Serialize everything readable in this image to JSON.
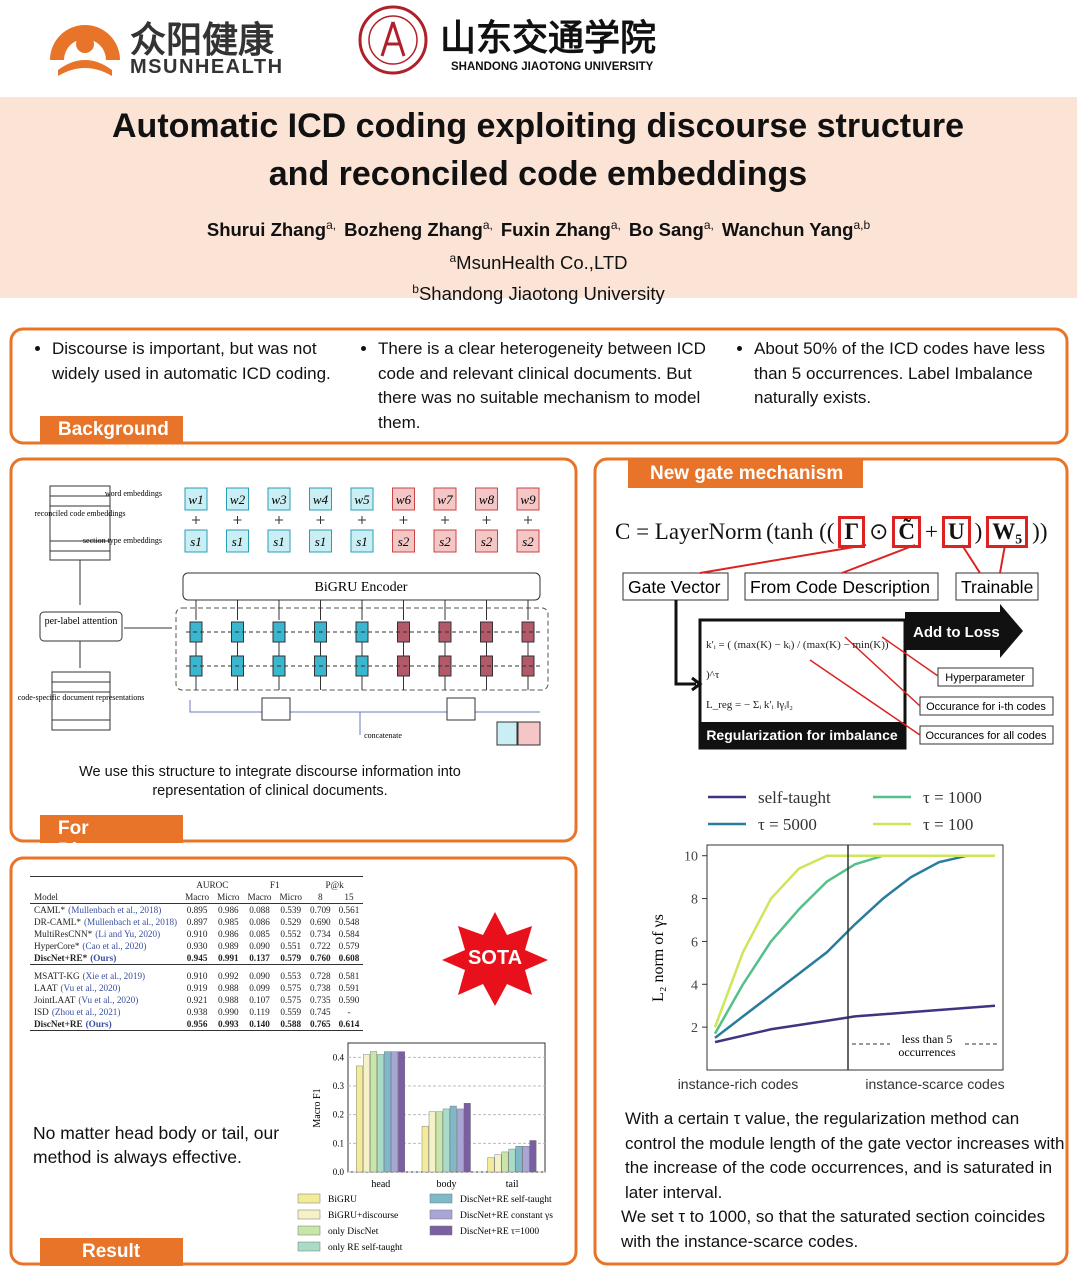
{
  "header": {
    "logo1_cn": "众阳健康",
    "logo1_en": "MSUNHEALTH",
    "logo2_cn": "山东交通学院",
    "logo2_en": "SHANDONG JIAOTONG UNIVERSITY",
    "title": [
      "Automatic ICD coding exploiting discourse structure",
      "and reconciled code embeddings"
    ],
    "authors": [
      {
        "name": "Shurui Zhang",
        "sup": "a,"
      },
      {
        "name": "Bozheng Zhang",
        "sup": "a,"
      },
      {
        "name": "Fuxin Zhang",
        "sup": "a,"
      },
      {
        "name": "Bo Sang",
        "sup": "a,"
      },
      {
        "name": "Wanchun Yang",
        "sup": "a,b"
      }
    ],
    "affiliations": [
      {
        "sup": "a",
        "text": "MsunHealth Co.,LTD"
      },
      {
        "sup": "b",
        "text": "Shandong Jiaotong University"
      }
    ]
  },
  "background": {
    "label": "Background",
    "bullets": [
      "Discourse is important, but was not widely used in automatic ICD coding.",
      "There is a clear heterogeneity between ICD code and relevant clinical documents. But there was no suitable mechanism to model them.",
      "About 50% of the ICD codes have less than 5 occurrences. Label Imbalance naturally exists."
    ]
  },
  "discourse": {
    "label": "For Discourse",
    "caption": "We use this structure to integrate discourse information into representation of clinical documents.",
    "figure": {
      "word_label": "word embeddings",
      "section_label": "section type embeddings",
      "encoder": "BiGRU Encoder",
      "reconciled": "reconciled code embeddings",
      "attention": "per-label attention",
      "doc_repr": "code-specific document representations",
      "concatenate": "concatenate",
      "words": [
        "w1",
        "w2",
        "w3",
        "w4",
        "w5",
        "w6",
        "w7",
        "w8",
        "w9"
      ],
      "sections": [
        "s1",
        "s1",
        "s1",
        "s1",
        "s1",
        "s2",
        "s2",
        "s2",
        "s2"
      ]
    }
  },
  "gate": {
    "label": "New gate mechanism",
    "formula": [
      {
        "text": "C = LayerNorm",
        "boxed": false
      },
      {
        "text": "(tanh ((",
        "boxed": false
      },
      {
        "text": "Γ",
        "boxed": true
      },
      {
        "text": "⊙",
        "boxed": false
      },
      {
        "text": "C̃",
        "boxed": true
      },
      {
        "text": "+",
        "boxed": false
      },
      {
        "text": "U",
        "boxed": true
      },
      {
        "text": ")",
        "boxed": false
      },
      {
        "text": "W₅",
        "boxed": true
      },
      {
        "text": "))",
        "boxed": false
      }
    ],
    "boxes": [
      "Gate Vector",
      "From Code Description",
      "Trainable"
    ],
    "reg_formula": [
      "k′ᵢ = ( (max(K) − kᵢ) / (max(K) − min(K)) )^τ",
      "L_reg = − Σᵢ k′ᵢ ‖γᵢ‖₂"
    ],
    "add_to_loss": "Add to Loss",
    "reg_label": "Regularization for imbalance",
    "notes": [
      "Hyperparameter",
      "Occurance for i-th codes",
      "Occurances for all codes"
    ],
    "description": [
      "With a certain τ value, the regularization method can control the module length of the gate vector increases with the increase of the code occurrences, and is saturated in later interval.",
      "We set τ to 1000, so that the saturated section coincides with the instance-scarce codes."
    ]
  },
  "result": {
    "label": "Result",
    "badge": "SOTA",
    "text": "No matter head body or tail, our method is always effective.",
    "table": {
      "group_headers": [
        "AUROC",
        "F1",
        "P@k"
      ],
      "columns": [
        "Model",
        "Macro",
        "Micro",
        "Macro",
        "Micro",
        "8",
        "15"
      ],
      "rows": [
        [
          "CAML*",
          "(Mullenbach et al., 2018)",
          "0.895",
          "0.986",
          "0.088",
          "0.539",
          "0.709",
          "0.561"
        ],
        [
          "DR-CAML*",
          "(Mullenbach et al., 2018)",
          "0.897",
          "0.985",
          "0.086",
          "0.529",
          "0.690",
          "0.548"
        ],
        [
          "MultiResCNN*",
          "(Li and Yu, 2020)",
          "0.910",
          "0.986",
          "0.085",
          "0.552",
          "0.734",
          "0.584"
        ],
        [
          "HyperCore*",
          "(Cao et al., 2020)",
          "0.930",
          "0.989",
          "0.090",
          "0.551",
          "0.722",
          "0.579"
        ],
        [
          "DiscNet+RE*",
          "(Ours)",
          "0.945",
          "0.991",
          "0.137",
          "0.579",
          "0.760",
          "0.608"
        ],
        [
          "MSATT-KG",
          "(Xie et al., 2019)",
          "0.910",
          "0.992",
          "0.090",
          "0.553",
          "0.728",
          "0.581"
        ],
        [
          "LAAT",
          "(Vu et al., 2020)",
          "0.919",
          "0.988",
          "0.099",
          "0.575",
          "0.738",
          "0.591"
        ],
        [
          "JointLAAT",
          "(Vu et al., 2020)",
          "0.921",
          "0.988",
          "0.107",
          "0.575",
          "0.735",
          "0.590"
        ],
        [
          "ISD",
          "(Zhou et al., 2021)",
          "0.938",
          "0.990",
          "0.119",
          "0.559",
          "0.745",
          "-"
        ],
        [
          "DiscNet+RE",
          "(Ours)",
          "0.956",
          "0.993",
          "0.140",
          "0.588",
          "0.765",
          "0.614"
        ]
      ]
    }
  },
  "chart_data": [
    {
      "type": "line",
      "ylabel": "L₂ norm of γs",
      "xlabels": [
        "instance-rich codes",
        "instance-scarce codes"
      ],
      "annotation": [
        "less than 5",
        "occurrences"
      ],
      "ylim": [
        0,
        10.5
      ],
      "yticks": [
        2,
        4,
        6,
        8,
        10
      ],
      "series": [
        {
          "name": "self-taught",
          "color": "#3d3580",
          "values": [
            1.3,
            1.6,
            1.9,
            2.1,
            2.3,
            2.5,
            2.6,
            2.7,
            2.8,
            2.9,
            3.0
          ]
        },
        {
          "name": "τ = 5000",
          "color": "#2a7c9c",
          "values": [
            1.5,
            2.5,
            3.5,
            4.5,
            5.5,
            6.8,
            8,
            9,
            9.7,
            10,
            10
          ]
        },
        {
          "name": "τ = 1000",
          "color": "#55c08a",
          "values": [
            1.7,
            4,
            6,
            7.5,
            8.8,
            9.6,
            10,
            10,
            10,
            10,
            10
          ]
        },
        {
          "name": "τ = 100",
          "color": "#cfe65a",
          "values": [
            2,
            5.5,
            8,
            9.4,
            10,
            10,
            10,
            10,
            10,
            10,
            10
          ]
        }
      ]
    },
    {
      "type": "bar",
      "ylabel": "Macro F1",
      "categories": [
        "head",
        "body",
        "tail"
      ],
      "ylim": [
        0,
        0.45
      ],
      "yticks": [
        {
          "value": 0,
          "label": "0.0"
        },
        0.1,
        0.2,
        0.3,
        0.4
      ],
      "grid": true,
      "series": [
        {
          "name": "BiGRU",
          "color": "#f3eb9a",
          "values": [
            0.37,
            0.16,
            0.05
          ]
        },
        {
          "name": "BiGRU+discourse",
          "color": "#f6f2c8",
          "values": [
            0.41,
            0.21,
            0.06
          ]
        },
        {
          "name": "only DiscNet",
          "color": "#c8e6a8",
          "values": [
            0.42,
            0.21,
            0.07
          ]
        },
        {
          "name": "only RE self-taught",
          "color": "#a9dcc6",
          "values": [
            0.41,
            0.22,
            0.08
          ]
        },
        {
          "name": "DiscNet+RE self-taught",
          "color": "#7fb8c9",
          "values": [
            0.42,
            0.23,
            0.09
          ]
        },
        {
          "name": "DiscNet+RE constant γs",
          "color": "#a9a6d6",
          "values": [
            0.42,
            0.22,
            0.09
          ]
        },
        {
          "name": "DiscNet+RE τ=1000",
          "color": "#7b5fa3",
          "values": [
            0.42,
            0.24,
            0.11
          ]
        }
      ]
    }
  ]
}
